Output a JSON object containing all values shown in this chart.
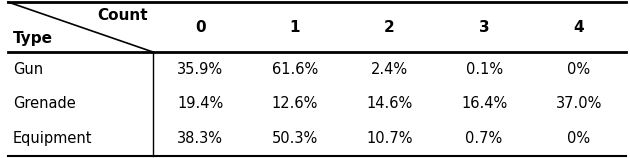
{
  "col_header": [
    "0",
    "1",
    "2",
    "3",
    "4"
  ],
  "row_header": [
    "Gun",
    "Grenade",
    "Equipment"
  ],
  "values": [
    [
      "35.9%",
      "61.6%",
      "2.4%",
      "0.1%",
      "0%"
    ],
    [
      "19.4%",
      "12.6%",
      "14.6%",
      "16.4%",
      "37.0%"
    ],
    [
      "38.3%",
      "50.3%",
      "10.7%",
      "0.7%",
      "0%"
    ]
  ],
  "top_left_label_top": "Count",
  "top_left_label_bottom": "Type",
  "header_fontsize": 11,
  "cell_fontsize": 10.5,
  "background_color": "#ffffff",
  "text_color": "#000000",
  "fig_width": 6.3,
  "fig_height": 1.58,
  "dpi": 100
}
